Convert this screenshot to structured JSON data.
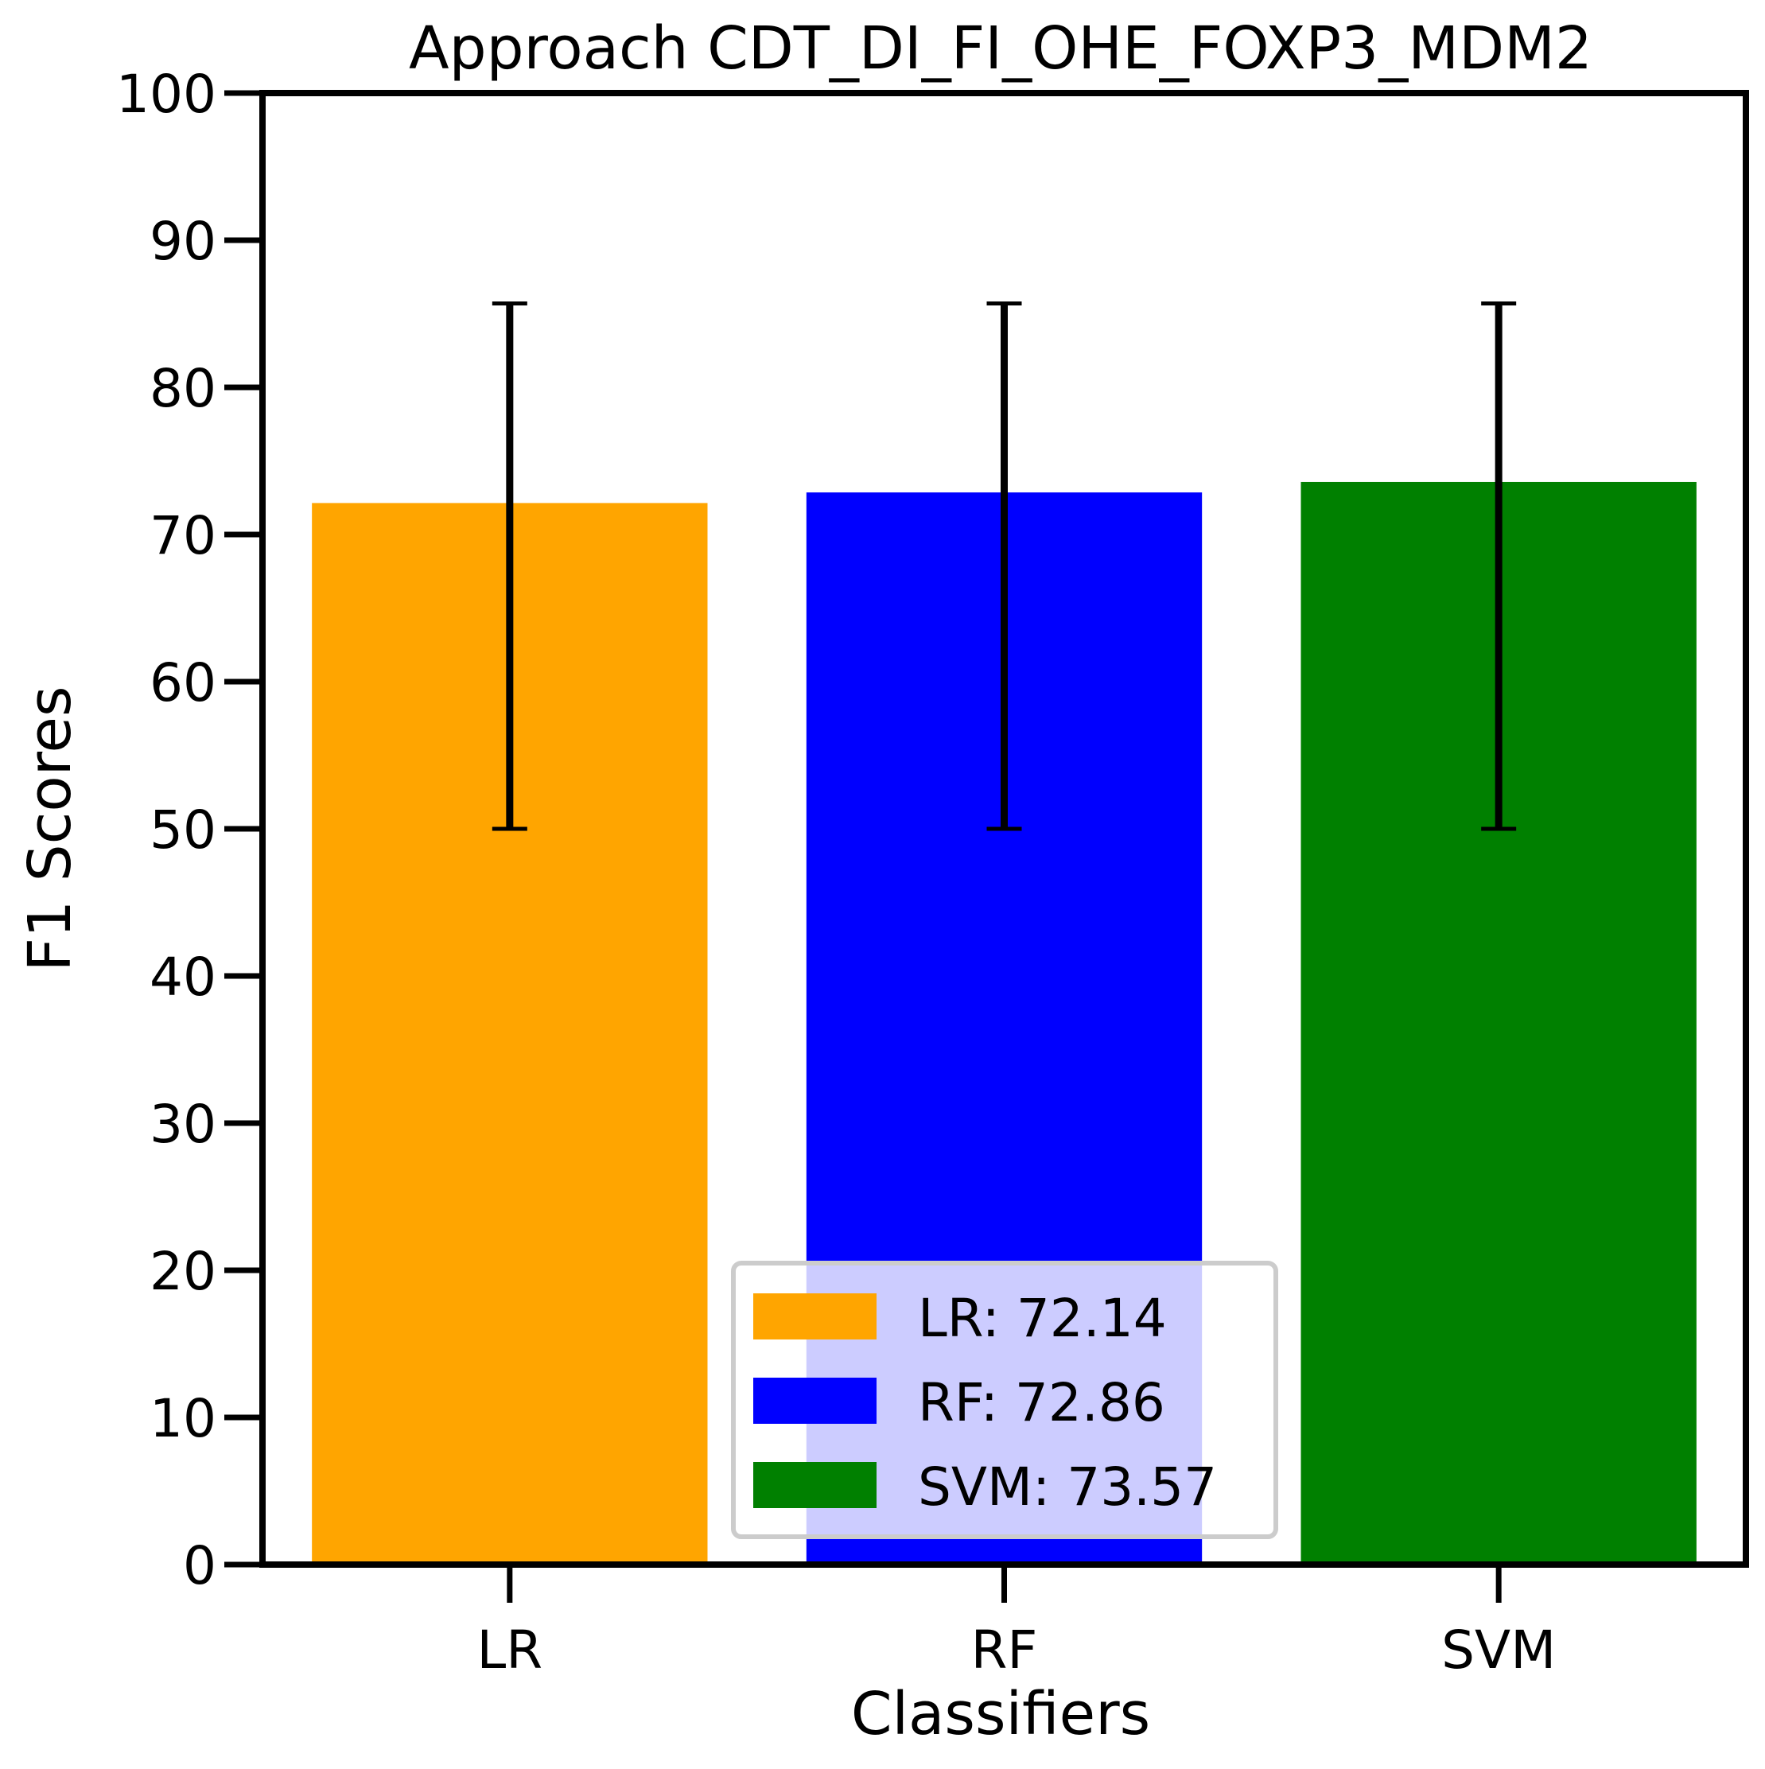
{
  "chart_data": {
    "type": "bar",
    "title": "Approach CDT_DI_FI_OHE_FOXP3_MDM2",
    "xlabel": "Classifiers",
    "ylabel": "F1 Scores",
    "ylim": [
      0,
      100
    ],
    "yticks": [
      "0",
      "10",
      "20",
      "30",
      "40",
      "50",
      "60",
      "70",
      "80",
      "90",
      "100"
    ],
    "categories": [
      "LR",
      "RF",
      "SVM"
    ],
    "values": [
      72.14,
      72.86,
      73.57
    ],
    "error_low": [
      50,
      50,
      50
    ],
    "error_high": [
      85.7,
      85.7,
      85.7
    ],
    "colors": [
      "#ffa500",
      "#0000ff",
      "#008000"
    ],
    "legend": {
      "placement": "lower-center",
      "entries": [
        "LR: 72.14",
        "RF: 72.86",
        "SVM: 73.57"
      ]
    },
    "grid": false
  }
}
